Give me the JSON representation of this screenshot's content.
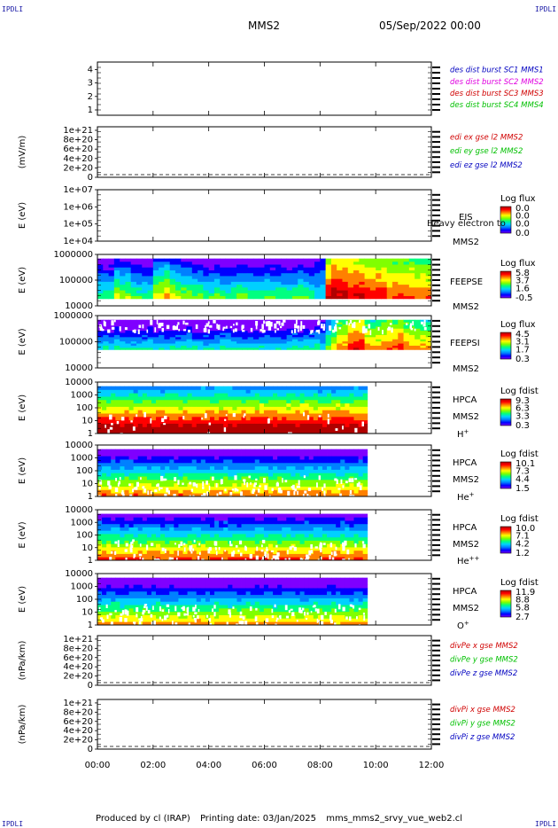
{
  "corners": {
    "tl": "IPDLI",
    "tr": "IPDLI",
    "bl": "IPDLI",
    "br": "IPDLI"
  },
  "header": {
    "spacecraft": "MMS2",
    "date": "05/Sep/2022 00:00"
  },
  "footer": {
    "produced": "Produced by cl (IRAP)",
    "printing": "Printing date: 03/Jan/2025",
    "file": "mms_mms2_srvy_vue_web2.cl"
  },
  "time_axis": {
    "ticks": [
      "00:00",
      "02:00",
      "04:00",
      "06:00",
      "08:00",
      "10:00",
      "12:00"
    ]
  },
  "colors": {
    "red": "#d00000",
    "magenta": "#e000e0",
    "green": "#00c000",
    "blue": "#0000c0",
    "colormap": [
      "#7f00ff",
      "#0000ff",
      "#0080ff",
      "#00d0ff",
      "#00ff80",
      "#80ff00",
      "#ffff00",
      "#ff8000",
      "#ff0000",
      "#b00000"
    ]
  },
  "chart_data": [
    {
      "id": "des-burst",
      "type": "line",
      "yticks": [
        "1",
        "2",
        "3",
        "4"
      ],
      "legend": [
        {
          "text": "des dist burst SC1 MMS1",
          "color": "#0000c0"
        },
        {
          "text": "des dist burst SC2 MMS2",
          "color": "#e000e0"
        },
        {
          "text": "des dist burst SC3 MMS3",
          "color": "#d00000"
        },
        {
          "text": "des dist burst SC4 MMS4",
          "color": "#00c000"
        }
      ]
    },
    {
      "id": "edi-e",
      "type": "line",
      "ylabel": "(mV/m)",
      "yticks": [
        "0",
        "2e+20",
        "4e+20",
        "6e+20",
        "8e+20",
        "1e+21"
      ],
      "legend": [
        {
          "text": "edi ex gse l2 MMS2",
          "color": "#d00000"
        },
        {
          "text": "edi ey gse l2 MMS2",
          "color": "#00c000"
        },
        {
          "text": "edi ez gse l2 MMS2",
          "color": "#0000c0"
        }
      ]
    },
    {
      "id": "eis",
      "type": "heatmap",
      "ylabel": "E (eV)",
      "yticks": [
        "1e+04",
        "1e+05",
        "1e+06",
        "1e+07"
      ],
      "instrument": "EIS",
      "overlay": "Heavy electron to",
      "sc": "MMS2",
      "cbar_title": "Log flux",
      "cbar_ticks": [
        "0.0",
        "0.0",
        "0.0",
        "0.0"
      ],
      "spectrogram": {
        "bands": []
      }
    },
    {
      "id": "feeps-e",
      "type": "heatmap",
      "ylabel": "E (eV)",
      "yticks": [
        "10000",
        "100000",
        "1000000"
      ],
      "instrument": "FEEPSE",
      "sc": "MMS2",
      "cbar_title": "Log flux",
      "cbar_ticks": [
        "5.8",
        "3.7",
        "1.6",
        "-0.5"
      ],
      "spectrogram": {
        "x_start": 0.0,
        "x_end": 12.0,
        "y_bottom": 0.14,
        "y_top": 0.92,
        "hot_from": 7.9,
        "level": [
          0.3,
          0.3,
          0.45,
          0.4,
          0.35,
          0.3,
          0.3,
          0.5,
          0.55,
          0.45,
          0.4,
          0.35,
          0.35,
          0.3,
          0.35,
          0.3,
          0.3,
          0.35,
          0.3,
          0.3,
          0.3,
          0.3,
          0.3,
          0.3,
          0.35,
          0.3,
          0.35,
          0.9,
          0.95,
          0.95,
          0.9,
          0.9,
          0.85,
          0.85,
          0.85,
          0.8,
          0.8,
          0.8,
          0.75,
          0.75
        ]
      }
    },
    {
      "id": "feeps-i",
      "type": "heatmap",
      "ylabel": "E (eV)",
      "yticks": [
        "10000",
        "100000",
        "1000000"
      ],
      "instrument": "FEEPSI",
      "sc": "MMS2",
      "cbar_title": "Log flux",
      "cbar_ticks": [
        "4.5",
        "3.1",
        "1.7",
        "0.3"
      ],
      "spectrogram": {
        "x_start": 0.0,
        "x_end": 12.0,
        "y_bottom": 0.35,
        "y_top": 0.92,
        "hot_from": 8.0,
        "level": [
          0.2,
          0.2,
          0.25,
          0.2,
          0.2,
          0.2,
          0.25,
          0.2,
          0.2,
          0.2,
          0.25,
          0.2,
          0.2,
          0.2,
          0.2,
          0.25,
          0.2,
          0.2,
          0.2,
          0.2,
          0.2,
          0.2,
          0.2,
          0.25,
          0.2,
          0.25,
          0.3,
          0.5,
          0.6,
          0.75,
          0.85,
          0.9,
          0.75,
          0.7,
          0.75,
          0.8,
          0.85,
          0.75,
          0.7,
          0.7
        ]
      }
    },
    {
      "id": "hpca-h",
      "type": "heatmap",
      "ylabel": "E (eV)",
      "yticks": [
        "1",
        "10",
        "100",
        "1000",
        "10000"
      ],
      "instrument": "HPCA",
      "sc": "MMS2",
      "species": "H+",
      "cbar_title": "Log fdist",
      "cbar_ticks": [
        "9.3",
        "6.3",
        "3.3",
        "0.3"
      ],
      "spectrogram": {
        "x_start": 0.0,
        "x_end": 9.7,
        "y_bottom": 0.0,
        "y_top": 0.92,
        "level": [
          0.75
        ]
      }
    },
    {
      "id": "hpca-he",
      "type": "heatmap",
      "ylabel": "E (eV)",
      "yticks": [
        "1",
        "10",
        "100",
        "1000",
        "10000"
      ],
      "instrument": "HPCA",
      "sc": "MMS2",
      "species": "He+",
      "cbar_title": "Log fdist",
      "cbar_ticks": [
        "10.1",
        "7.3",
        "4.4",
        "1.5"
      ],
      "spectrogram": {
        "x_start": 0.0,
        "x_end": 9.7,
        "y_bottom": 0.0,
        "y_top": 0.92,
        "level": [
          0.45
        ]
      }
    },
    {
      "id": "hpca-hepp",
      "type": "heatmap",
      "ylabel": "E (eV)",
      "yticks": [
        "1",
        "10",
        "100",
        "1000",
        "10000"
      ],
      "instrument": "HPCA",
      "sc": "MMS2",
      "species": "He++",
      "cbar_title": "Log fdist",
      "cbar_ticks": [
        "10.0",
        "7.1",
        "4.2",
        "1.2"
      ],
      "spectrogram": {
        "x_start": 0.0,
        "x_end": 9.7,
        "y_bottom": 0.0,
        "y_top": 0.92,
        "level": [
          0.5
        ]
      }
    },
    {
      "id": "hpca-o",
      "type": "heatmap",
      "ylabel": "E (eV)",
      "yticks": [
        "1",
        "10",
        "100",
        "1000",
        "10000"
      ],
      "instrument": "HPCA",
      "sc": "MMS2",
      "species": "O+",
      "cbar_title": "Log fdist",
      "cbar_ticks": [
        "11.9",
        "8.8",
        "5.8",
        "2.7"
      ],
      "spectrogram": {
        "x_start": 0.0,
        "x_end": 9.7,
        "y_bottom": 0.0,
        "y_top": 0.92,
        "level": [
          0.4
        ]
      }
    },
    {
      "id": "divpe",
      "type": "line",
      "ylabel": "(nPa/km)",
      "yticks": [
        "0",
        "2e+20",
        "4e+20",
        "6e+20",
        "8e+20",
        "1e+21"
      ],
      "legend": [
        {
          "text": "divPe x gse MMS2",
          "color": "#d00000"
        },
        {
          "text": "divPe y gse MMS2",
          "color": "#00c000"
        },
        {
          "text": "divPe z gse MMS2",
          "color": "#0000c0"
        }
      ]
    },
    {
      "id": "divpi",
      "type": "line",
      "ylabel": "(nPa/km)",
      "yticks": [
        "0",
        "2e+20",
        "4e+20",
        "6e+20",
        "8e+20",
        "1e+21"
      ],
      "legend": [
        {
          "text": "divPi x gse MMS2",
          "color": "#d00000"
        },
        {
          "text": "divPi y gse MMS2",
          "color": "#00c000"
        },
        {
          "text": "divPi z gse MMS2",
          "color": "#0000c0"
        }
      ]
    }
  ]
}
